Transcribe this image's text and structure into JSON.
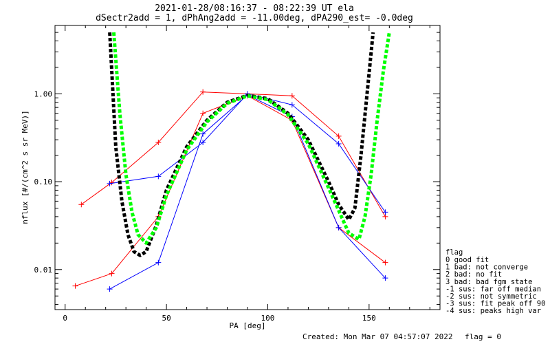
{
  "chart_data": {
    "type": "scatter",
    "title": "2021-01-28/08:16:37 - 08:22:39 UT ela",
    "subtitle": "dSectr2add = 1, dPhAng2add = -11.00deg, dPA290_est=  -0.0deg",
    "xlabel": "PA [deg]",
    "ylabel": "nflux [#/(cm^2 s sr MeV)]",
    "xlim": [
      -5,
      185
    ],
    "ylim": [
      0.0035,
      6.0
    ],
    "yscale": "log",
    "x_ticks": [
      0,
      50,
      100,
      150
    ],
    "x_tick_labels": [
      "0",
      "50",
      "100",
      "150"
    ],
    "y_ticks": [
      0.01,
      0.1,
      1.0
    ],
    "y_tick_labels": [
      "0.01",
      "0.10",
      "1.00"
    ],
    "grid": false,
    "legend_position": "right",
    "legend_title": "flag",
    "legend": [
      " 0 good fit",
      " 1 bad: not converge",
      " 2 bad: no fit",
      " 3 bad: bad fgm state",
      "-1 sus: far off median",
      "-2 sus: not symmetric",
      "-3 sus: fit peak off 90",
      "-4 sus: peaks high var"
    ],
    "footer_created": "Created: Mon Mar 07 04:57:07 2022",
    "footer_flag": "flag = 0",
    "colors": {
      "red": "#ff0000",
      "blue": "#0000ff",
      "green": "#00ff00",
      "black": "#000000"
    },
    "series": [
      {
        "color": "#ff0000",
        "x": [
          8,
          23,
          46,
          68,
          90,
          112,
          135,
          158
        ],
        "y": [
          0.055,
          0.098,
          0.28,
          1.05,
          1.0,
          0.95,
          0.33,
          0.04
        ]
      },
      {
        "color": "#0000ff",
        "x": [
          22,
          46,
          68,
          90,
          112,
          135,
          158
        ],
        "y": [
          0.095,
          0.115,
          0.28,
          1.0,
          0.75,
          0.27,
          0.045
        ]
      },
      {
        "color": "#ff0000",
        "x": [
          5,
          23,
          46,
          68,
          90,
          112,
          135,
          158
        ],
        "y": [
          0.0065,
          0.009,
          0.04,
          0.6,
          0.95,
          0.5,
          0.03,
          0.012
        ]
      },
      {
        "color": "#0000ff",
        "x": [
          22,
          46,
          68,
          90,
          112,
          135,
          158
        ],
        "y": [
          0.006,
          0.012,
          0.35,
          0.97,
          0.55,
          0.03,
          0.008
        ]
      }
    ],
    "fit_black": {
      "x": [
        22,
        25,
        28,
        31,
        34,
        37,
        40,
        45,
        50,
        60,
        70,
        80,
        90,
        100,
        110,
        120,
        130,
        135,
        140,
        143,
        146,
        149,
        152
      ],
      "y": [
        5.0,
        0.25,
        0.06,
        0.025,
        0.016,
        0.0145,
        0.016,
        0.032,
        0.08,
        0.25,
        0.5,
        0.8,
        0.96,
        0.88,
        0.6,
        0.3,
        0.1,
        0.055,
        0.037,
        0.05,
        0.2,
        1.0,
        5.0
      ]
    },
    "fit_green": {
      "x": [
        24,
        27,
        30,
        33,
        36,
        40,
        45,
        50,
        60,
        70,
        80,
        90,
        100,
        110,
        120,
        130,
        140,
        145,
        148,
        151,
        154,
        157,
        160
      ],
      "y": [
        5.0,
        0.6,
        0.12,
        0.045,
        0.025,
        0.02,
        0.03,
        0.07,
        0.23,
        0.48,
        0.78,
        0.95,
        0.86,
        0.58,
        0.27,
        0.085,
        0.026,
        0.022,
        0.04,
        0.12,
        0.5,
        1.8,
        5.0
      ]
    }
  }
}
